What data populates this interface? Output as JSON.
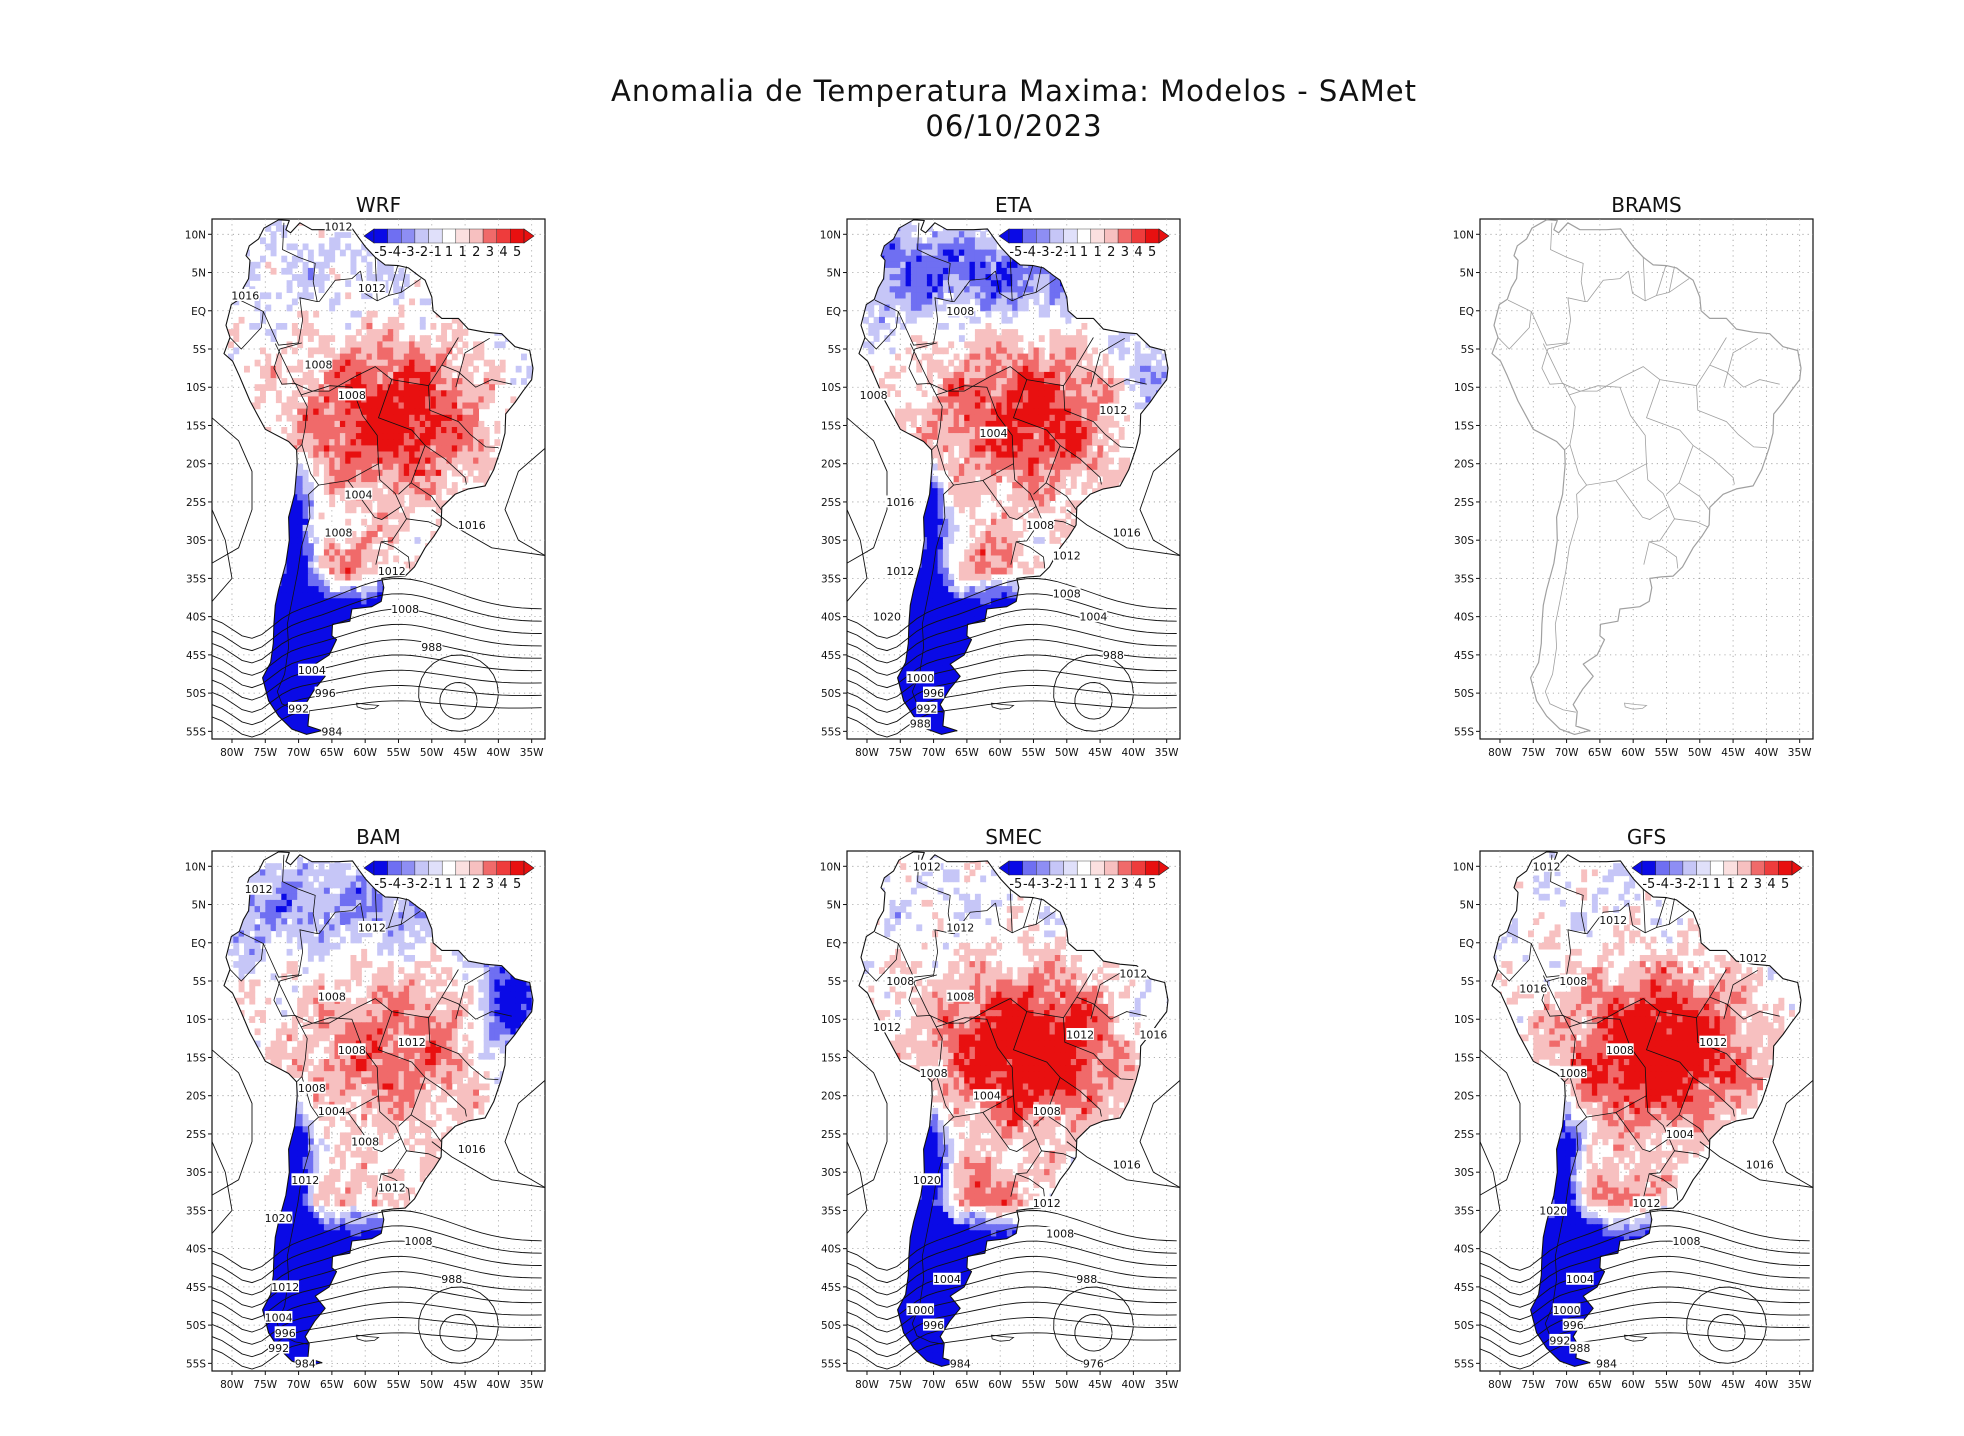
{
  "title": {
    "line1": "Anomalia de Temperatura Maxima: Modelos - SAMet",
    "line2": "06/10/2023"
  },
  "colors": {
    "cold_deep": "#0a0ae6",
    "cold_mid": "#6f6ff2",
    "cold_light": "#c6c6f7",
    "neutral": "#ffffff",
    "warm_light": "#f7c0c0",
    "warm_mid": "#f06a6a",
    "warm_deep": "#e81010",
    "isobar": "#111111",
    "coast_gray": "#a0a0a0"
  },
  "axes": {
    "lat_labels": [
      "10N",
      "5N",
      "EQ",
      "5S",
      "10S",
      "15S",
      "20S",
      "25S",
      "30S",
      "35S",
      "40S",
      "45S",
      "50S",
      "55S"
    ],
    "lon_labels": [
      "80W",
      "75W",
      "70W",
      "65W",
      "60W",
      "55W",
      "50W",
      "45W",
      "40W",
      "35W"
    ]
  },
  "colorbar": {
    "labels": [
      "-5",
      "-4",
      "-3",
      "-2",
      "-1",
      "1",
      "1",
      "2",
      "3",
      "4",
      "5"
    ]
  },
  "panels": [
    {
      "name": "WRF",
      "has_data": true,
      "warm": 0.8,
      "north_cold": 0.2,
      "east_cold": 0.15,
      "south_cold": 0.95,
      "isobars": [
        {
          "text": "1012",
          "lon": -64,
          "lat": 11
        },
        {
          "text": "1012",
          "lon": -59,
          "lat": 3
        },
        {
          "text": "1016",
          "lon": -78,
          "lat": 2
        },
        {
          "text": "1008",
          "lon": -67,
          "lat": -7
        },
        {
          "text": "1008",
          "lon": -62,
          "lat": -11
        },
        {
          "text": "1004",
          "lon": -61,
          "lat": -24
        },
        {
          "text": "1016",
          "lon": -44,
          "lat": -28
        },
        {
          "text": "1008",
          "lon": -64,
          "lat": -29
        },
        {
          "text": "1012",
          "lon": -56,
          "lat": -34
        },
        {
          "text": "1008",
          "lon": -54,
          "lat": -39
        },
        {
          "text": "1004",
          "lon": -68,
          "lat": -47
        },
        {
          "text": "996",
          "lon": -66,
          "lat": -50
        },
        {
          "text": "988",
          "lon": -50,
          "lat": -44
        },
        {
          "text": "992",
          "lon": -70,
          "lat": -52
        },
        {
          "text": "984",
          "lon": -65,
          "lat": -55
        }
      ]
    },
    {
      "name": "ETA",
      "has_data": true,
      "warm": 0.75,
      "north_cold": 0.7,
      "east_cold": 0.4,
      "south_cold": 0.9,
      "isobars": [
        {
          "text": "1008",
          "lon": -66,
          "lat": 0
        },
        {
          "text": "1008",
          "lon": -79,
          "lat": -11
        },
        {
          "text": "1004",
          "lon": -61,
          "lat": -16
        },
        {
          "text": "1012",
          "lon": -43,
          "lat": -13
        },
        {
          "text": "1016",
          "lon": -75,
          "lat": -25
        },
        {
          "text": "1008",
          "lon": -54,
          "lat": -28
        },
        {
          "text": "1012",
          "lon": -50,
          "lat": -32
        },
        {
          "text": "1016",
          "lon": -41,
          "lat": -29
        },
        {
          "text": "1012",
          "lon": -75,
          "lat": -34
        },
        {
          "text": "1008",
          "lon": -50,
          "lat": -37
        },
        {
          "text": "1004",
          "lon": -46,
          "lat": -40
        },
        {
          "text": "1020",
          "lon": -77,
          "lat": -40
        },
        {
          "text": "988",
          "lon": -43,
          "lat": -45
        },
        {
          "text": "1000",
          "lon": -72,
          "lat": -48
        },
        {
          "text": "996",
          "lon": -70,
          "lat": -50
        },
        {
          "text": "992",
          "lon": -71,
          "lat": -52
        },
        {
          "text": "988",
          "lon": -72,
          "lat": -54
        }
      ]
    },
    {
      "name": "BRAMS",
      "has_data": false,
      "warm": 0,
      "north_cold": 0,
      "east_cold": 0,
      "south_cold": 0,
      "isobars": []
    },
    {
      "name": "BAM",
      "has_data": true,
      "warm": 0.55,
      "north_cold": 0.5,
      "east_cold": 0.95,
      "south_cold": 0.95,
      "isobars": [
        {
          "text": "1012",
          "lon": -76,
          "lat": 7
        },
        {
          "text": "1012",
          "lon": -59,
          "lat": 2
        },
        {
          "text": "1008",
          "lon": -65,
          "lat": -7
        },
        {
          "text": "1008",
          "lon": -62,
          "lat": -14
        },
        {
          "text": "1012",
          "lon": -53,
          "lat": -13
        },
        {
          "text": "1008",
          "lon": -68,
          "lat": -19
        },
        {
          "text": "1004",
          "lon": -65,
          "lat": -22
        },
        {
          "text": "1008",
          "lon": -60,
          "lat": -26
        },
        {
          "text": "1016",
          "lon": -44,
          "lat": -27
        },
        {
          "text": "1012",
          "lon": -69,
          "lat": -31
        },
        {
          "text": "1012",
          "lon": -56,
          "lat": -32
        },
        {
          "text": "1008",
          "lon": -52,
          "lat": -39
        },
        {
          "text": "1020",
          "lon": -73,
          "lat": -36
        },
        {
          "text": "1012",
          "lon": -72,
          "lat": -45
        },
        {
          "text": "988",
          "lon": -47,
          "lat": -44
        },
        {
          "text": "1004",
          "lon": -73,
          "lat": -49
        },
        {
          "text": "996",
          "lon": -72,
          "lat": -51
        },
        {
          "text": "992",
          "lon": -73,
          "lat": -53
        },
        {
          "text": "984",
          "lon": -69,
          "lat": -55
        }
      ]
    },
    {
      "name": "SMEC",
      "has_data": true,
      "warm": 0.95,
      "north_cold": 0.1,
      "east_cold": 0.2,
      "south_cold": 0.95,
      "isobars": [
        {
          "text": "1012",
          "lon": -71,
          "lat": 10
        },
        {
          "text": "1012",
          "lon": -66,
          "lat": 2
        },
        {
          "text": "1008",
          "lon": -75,
          "lat": -5
        },
        {
          "text": "1008",
          "lon": -66,
          "lat": -7
        },
        {
          "text": "1012",
          "lon": -77,
          "lat": -11
        },
        {
          "text": "1012",
          "lon": -40,
          "lat": -4
        },
        {
          "text": "1016",
          "lon": -37,
          "lat": -12
        },
        {
          "text": "1012",
          "lon": -48,
          "lat": -12
        },
        {
          "text": "1008",
          "lon": -70,
          "lat": -17
        },
        {
          "text": "1004",
          "lon": -62,
          "lat": -20
        },
        {
          "text": "1008",
          "lon": -53,
          "lat": -22
        },
        {
          "text": "1016",
          "lon": -41,
          "lat": -29
        },
        {
          "text": "1012",
          "lon": -53,
          "lat": -34
        },
        {
          "text": "1008",
          "lon": -51,
          "lat": -38
        },
        {
          "text": "1020",
          "lon": -71,
          "lat": -31
        },
        {
          "text": "1004",
          "lon": -68,
          "lat": -44
        },
        {
          "text": "988",
          "lon": -47,
          "lat": -44
        },
        {
          "text": "1000",
          "lon": -72,
          "lat": -48
        },
        {
          "text": "996",
          "lon": -70,
          "lat": -50
        },
        {
          "text": "976",
          "lon": -46,
          "lat": -55
        },
        {
          "text": "984",
          "lon": -66,
          "lat": -55
        }
      ]
    },
    {
      "name": "GFS",
      "has_data": true,
      "warm": 0.95,
      "north_cold": 0.05,
      "east_cold": 0.1,
      "south_cold": 0.9,
      "isobars": [
        {
          "text": "1012",
          "lon": -73,
          "lat": 10
        },
        {
          "text": "1012",
          "lon": -63,
          "lat": 3
        },
        {
          "text": "1008",
          "lon": -69,
          "lat": -5
        },
        {
          "text": "1016",
          "lon": -75,
          "lat": -6
        },
        {
          "text": "1012",
          "lon": -42,
          "lat": -2
        },
        {
          "text": "1008",
          "lon": -62,
          "lat": -14
        },
        {
          "text": "1012",
          "lon": -48,
          "lat": -13
        },
        {
          "text": "1008",
          "lon": -69,
          "lat": -17
        },
        {
          "text": "1004",
          "lon": -53,
          "lat": -25
        },
        {
          "text": "1016",
          "lon": -41,
          "lat": -29
        },
        {
          "text": "1012",
          "lon": -58,
          "lat": -34
        },
        {
          "text": "1008",
          "lon": -52,
          "lat": -39
        },
        {
          "text": "1020",
          "lon": -72,
          "lat": -35
        },
        {
          "text": "1004",
          "lon": -68,
          "lat": -44
        },
        {
          "text": "1000",
          "lon": -70,
          "lat": -48
        },
        {
          "text": "996",
          "lon": -69,
          "lat": -50
        },
        {
          "text": "992",
          "lon": -71,
          "lat": -52
        },
        {
          "text": "988",
          "lon": -68,
          "lat": -53
        },
        {
          "text": "984",
          "lon": -64,
          "lat": -55
        }
      ]
    }
  ]
}
